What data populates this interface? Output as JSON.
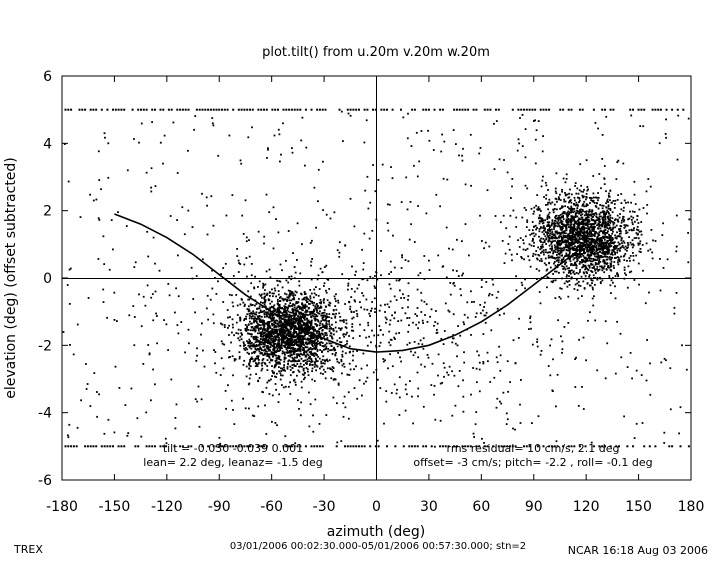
{
  "chart_data": {
    "type": "scatter",
    "title": "plot.tilt() from u.20m v.20m w.20m",
    "xlabel": "azimuth (deg)",
    "ylabel": "elevation (deg)  (offset subtracted)",
    "xlim": [
      -180,
      180
    ],
    "ylim": [
      -6,
      6
    ],
    "xticks": [
      "-180",
      "-150",
      "-120",
      "-90",
      "-60",
      "-30",
      "0",
      "30",
      "60",
      "90",
      "120",
      "150",
      "180"
    ],
    "yticks": [
      "-6",
      "-4",
      "-2",
      "0",
      "2",
      "4",
      "6"
    ],
    "grid": false,
    "reference_lines": {
      "x": 0,
      "y": 0
    },
    "clipped_rows": [
      5,
      -5
    ],
    "clusters": [
      {
        "center": [
          -50,
          -1.6
        ],
        "spread": [
          14,
          0.6
        ],
        "weight": 0.38
      },
      {
        "center": [
          118,
          1.2
        ],
        "spread": [
          14,
          0.65
        ],
        "weight": 0.38
      },
      {
        "center": [
          0,
          -1.5
        ],
        "spread": [
          55,
          1.3
        ],
        "weight": 0.1
      }
    ],
    "fit_curve": {
      "x": [
        -150,
        -135,
        -120,
        -105,
        -90,
        -75,
        -60,
        -45,
        -30,
        -15,
        0,
        15,
        30,
        45,
        60,
        75,
        90,
        105,
        120
      ],
      "y": [
        1.9,
        1.6,
        1.2,
        0.7,
        0.1,
        -0.5,
        -1.0,
        -1.5,
        -1.8,
        -2.1,
        -2.2,
        -2.15,
        -2.0,
        -1.7,
        -1.3,
        -0.8,
        -0.2,
        0.4,
        1.0
      ]
    },
    "annotations_left": [
      "tilt = -0.030  -0.039  0.001",
      "lean= 2.2 deg, leanaz= -1.5 deg"
    ],
    "annotations_right": [
      "rms residual= 10 cm/s, 2.1 deg",
      "offset= -3 cm/s; pitch= -2.2 , roll= -0.1 deg"
    ]
  },
  "footer": {
    "left": "TREX",
    "center": "03/01/2006 00:02:30.000-05/01/2006 00:57:30.000; stn=2",
    "right": "NCAR 16:18 Aug 03 2006"
  },
  "colors": {
    "ink": "#000000",
    "background": "#ffffff"
  }
}
